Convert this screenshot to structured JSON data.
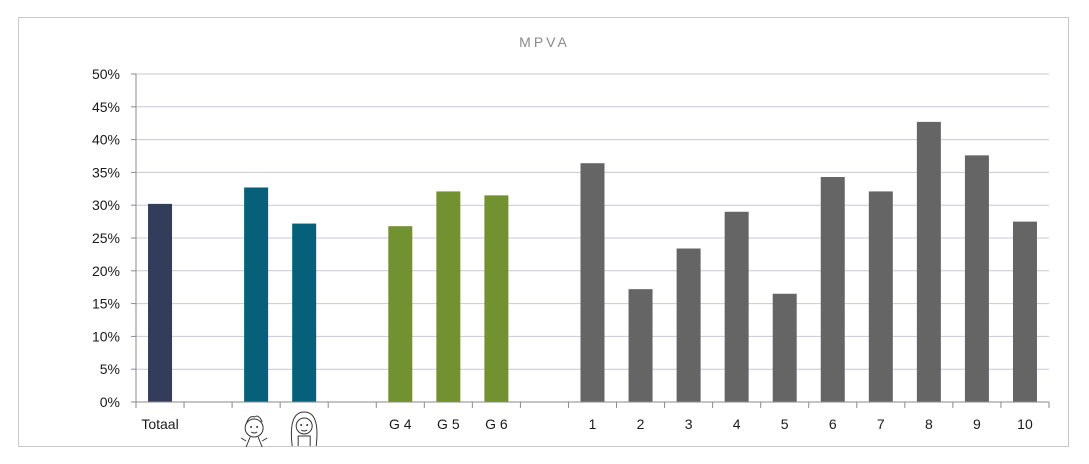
{
  "chart_data": {
    "type": "bar",
    "title": "MPVA",
    "xlabel": "",
    "ylabel": "",
    "ylim": [
      0,
      50
    ],
    "yticks": [
      "0%",
      "5%",
      "10%",
      "15%",
      "20%",
      "25%",
      "30%",
      "35%",
      "40%",
      "45%",
      "50%"
    ],
    "grid": true,
    "categories": [
      "Totaal",
      "",
      "boy-icon",
      "girl-icon",
      "",
      "G 4",
      "G 5",
      "G 6",
      "",
      "1",
      "2",
      "3",
      "4",
      "5",
      "6",
      "7",
      "8",
      "9",
      "10"
    ],
    "values": [
      30.2,
      null,
      32.7,
      27.2,
      null,
      26.8,
      32.1,
      31.5,
      null,
      36.4,
      17.2,
      23.4,
      29.0,
      16.5,
      34.3,
      32.1,
      42.7,
      37.6,
      27.5
    ],
    "colors": {
      "totaal": "#343c5c",
      "gender": "#06607a",
      "grade": "#729232",
      "group": "#666566",
      "grid": "#c8c8d8",
      "axis": "#8a8a8a"
    },
    "bar_colors": [
      "totaal",
      null,
      "gender",
      "gender",
      null,
      "grade",
      "grade",
      "grade",
      null,
      "group",
      "group",
      "group",
      "group",
      "group",
      "group",
      "group",
      "group",
      "group",
      "group"
    ]
  }
}
